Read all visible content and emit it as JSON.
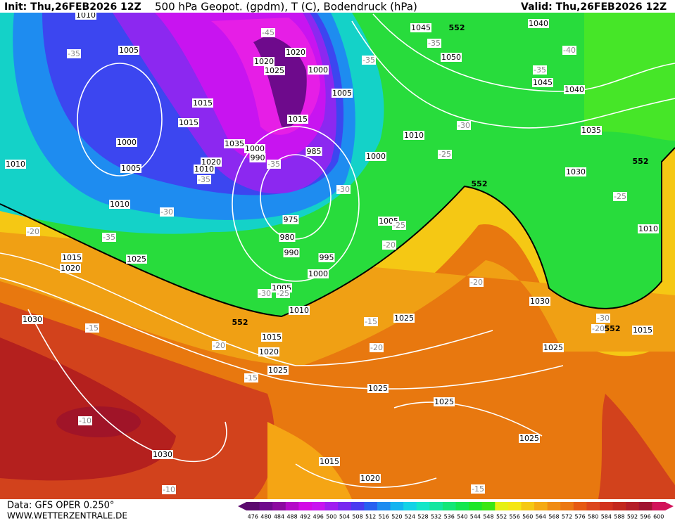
{
  "header": {
    "init": "Init: Thu,26FEB2026 12Z",
    "title": "500 hPa Geopot. (gpdm), T (C), Bodendruck (hPa)",
    "valid": "Valid: Thu,26FEB2026 12Z"
  },
  "footer": {
    "data": "Data: GFS OPER 0.250°",
    "site": "WWW.WETTERZENTRALE.DE"
  },
  "colorbar": {
    "labels": [
      476,
      480,
      484,
      488,
      492,
      496,
      500,
      504,
      508,
      512,
      516,
      520,
      524,
      528,
      532,
      536,
      540,
      544,
      548,
      552,
      556,
      560,
      564,
      568,
      572,
      576,
      580,
      584,
      588,
      592,
      596,
      600
    ],
    "colors": [
      "#5a0a6e",
      "#6e0a8c",
      "#8c0aa0",
      "#b40ac8",
      "#d20ae6",
      "#c814f0",
      "#a01ef0",
      "#7828f0",
      "#4a3cf0",
      "#2860f0",
      "#1e8cf0",
      "#14b4f0",
      "#14d2e6",
      "#14e6c8",
      "#14e6a0",
      "#14e678",
      "#14e650",
      "#1ee628",
      "#3ce614",
      "#e6f014",
      "#f5e614",
      "#f5c814",
      "#f5aa14",
      "#f08c14",
      "#eb7814",
      "#e65a14",
      "#dc461e",
      "#d2321e",
      "#c3281e",
      "#b41e28",
      "#a01432",
      "#d2145a"
    ]
  },
  "map_labels": {
    "isobars": [
      1010,
      1005,
      1015,
      1015,
      1000,
      1005,
      1010,
      1010,
      1035,
      1000,
      1020,
      1010,
      990,
      985,
      975,
      980,
      990,
      995,
      1000,
      1005,
      1010,
      1015,
      1020,
      1025,
      1025,
      1015,
      1020,
      1030,
      1030,
      1025,
      1025,
      1025,
      1015,
      1020,
      1025,
      1030,
      1025,
      1015,
      1010,
      1030,
      1035,
      1040,
      1045,
      1040,
      1045,
      1050,
      1010,
      1000,
      1005,
      1005,
      1000,
      1025,
      1020,
      1015,
      1020
    ],
    "temperatures": [
      -35,
      -45,
      -35,
      -40,
      -35,
      -35,
      -30,
      -25,
      -30,
      -35,
      -30,
      -35,
      -20,
      -25,
      -20,
      -35,
      -30,
      -25,
      -15,
      -20,
      -15,
      -10,
      -10,
      -15,
      -15,
      -20,
      -20,
      -25,
      -20,
      -30
    ],
    "geopotential": [
      552,
      552,
      552,
      552,
      552
    ]
  }
}
